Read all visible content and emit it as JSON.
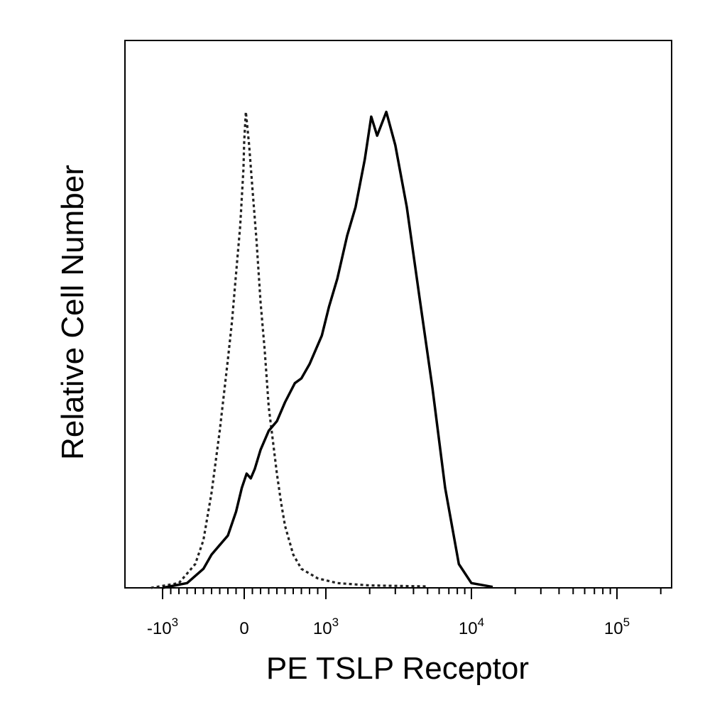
{
  "chart_data": {
    "type": "histogram",
    "xlabel": "PE TSLP Receptor",
    "ylabel": "Relative Cell Number",
    "x_scale": "biexponential",
    "xlim": [
      -1800,
      250000
    ],
    "ylim": [
      0,
      1.15
    ],
    "grid": false,
    "legend": "none",
    "x_ticks": [
      {
        "value": -1000,
        "base": "-10",
        "exp": "3"
      },
      {
        "value": 0,
        "base": "0",
        "exp": ""
      },
      {
        "value": 1000,
        "base": "10",
        "exp": "3"
      },
      {
        "value": 10000,
        "base": "10",
        "exp": "4"
      },
      {
        "value": 100000,
        "base": "10",
        "exp": "5"
      }
    ],
    "series": [
      {
        "line_style": "dotted",
        "color": "#222222",
        "points": [
          [
            -1200,
            0
          ],
          [
            -800,
            0.01
          ],
          [
            -600,
            0.05
          ],
          [
            -500,
            0.1
          ],
          [
            -400,
            0.2
          ],
          [
            -300,
            0.33
          ],
          [
            -200,
            0.48
          ],
          [
            -150,
            0.56
          ],
          [
            -100,
            0.66
          ],
          [
            -50,
            0.76
          ],
          [
            -10,
            0.88
          ],
          [
            0,
            0.94
          ],
          [
            20,
            1.0
          ],
          [
            60,
            0.93
          ],
          [
            100,
            0.84
          ],
          [
            150,
            0.73
          ],
          [
            200,
            0.6
          ],
          [
            250,
            0.5
          ],
          [
            300,
            0.38
          ],
          [
            350,
            0.31
          ],
          [
            400,
            0.24
          ],
          [
            450,
            0.18
          ],
          [
            500,
            0.13
          ],
          [
            600,
            0.07
          ],
          [
            700,
            0.04
          ],
          [
            900,
            0.02
          ],
          [
            1200,
            0.01
          ],
          [
            2000,
            0.005
          ],
          [
            5000,
            0.003
          ],
          [
            250000,
            0.003
          ]
        ]
      },
      {
        "line_style": "solid",
        "color": "#000000",
        "points": [
          [
            -1000,
            0
          ],
          [
            -700,
            0.01
          ],
          [
            -500,
            0.04
          ],
          [
            -400,
            0.07
          ],
          [
            -300,
            0.09
          ],
          [
            -200,
            0.11
          ],
          [
            -100,
            0.16
          ],
          [
            -30,
            0.21
          ],
          [
            30,
            0.24
          ],
          [
            80,
            0.23
          ],
          [
            130,
            0.25
          ],
          [
            200,
            0.29
          ],
          [
            300,
            0.33
          ],
          [
            400,
            0.35
          ],
          [
            500,
            0.39
          ],
          [
            620,
            0.43
          ],
          [
            700,
            0.44
          ],
          [
            800,
            0.47
          ],
          [
            950,
            0.53
          ],
          [
            1050,
            0.59
          ],
          [
            1200,
            0.65
          ],
          [
            1400,
            0.74
          ],
          [
            1600,
            0.8
          ],
          [
            1850,
            0.9
          ],
          [
            2050,
            0.99
          ],
          [
            2250,
            0.95
          ],
          [
            2600,
            1.0
          ],
          [
            3000,
            0.93
          ],
          [
            3600,
            0.8
          ],
          [
            4400,
            0.61
          ],
          [
            5400,
            0.42
          ],
          [
            6600,
            0.21
          ],
          [
            8200,
            0.05
          ],
          [
            10000,
            0.01
          ],
          [
            14000,
            0.002
          ],
          [
            250000,
            0.001
          ]
        ]
      }
    ]
  }
}
